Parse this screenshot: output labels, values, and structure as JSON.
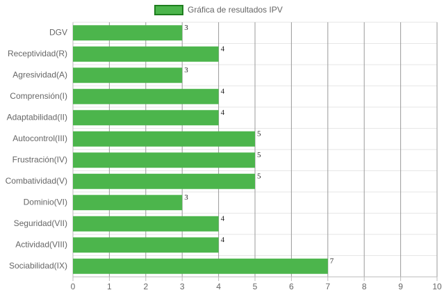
{
  "chart_data": {
    "type": "bar",
    "orientation": "horizontal",
    "categories": [
      "DGV",
      "Receptividad(R)",
      "Agresividad(A)",
      "Comprensión(I)",
      "Adaptabilidad(II)",
      "Autocontrol(III)",
      "Frustración(IV)",
      "Combatividad(V)",
      "Dominio(VI)",
      "Seguridad(VII)",
      "Actividad(VIII)",
      "Sociabilidad(IX)"
    ],
    "series": [
      {
        "name": "Gráfica de resultados IPV",
        "color": "#4cb54c",
        "border": "#1e7e1e",
        "values": [
          3,
          4,
          3,
          4,
          4,
          5,
          5,
          5,
          3,
          4,
          4,
          7
        ]
      }
    ],
    "xlim": [
      0,
      10
    ],
    "xticks": [
      0,
      1,
      2,
      3,
      4,
      5,
      6,
      7,
      8,
      9,
      10
    ],
    "grid": true,
    "legend": "top"
  }
}
